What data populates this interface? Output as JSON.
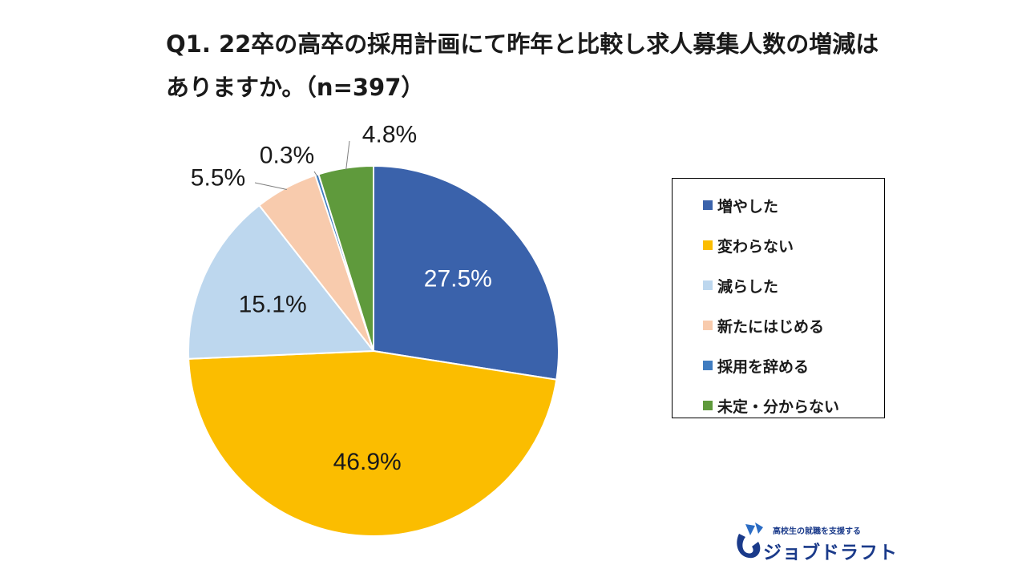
{
  "title": {
    "line1": "Q1. 22卒の高卒の採用計画にて昨年と比較し求人募集人数の増減は",
    "line2": "ありますか。（n=397）"
  },
  "chart_data": {
    "type": "pie",
    "title": "Q1. 22卒の高卒の採用計画にて昨年と比較し求人募集人数の増減はありますか。（n=397）",
    "start_angle": "12 o'clock",
    "direction": "clockwise",
    "legend_position": "right",
    "slices": [
      {
        "label": "増やした",
        "value": 27.5,
        "display": "27.5%",
        "color": "#3a62ab",
        "label_color": "#ffffff"
      },
      {
        "label": "変わらない",
        "value": 46.9,
        "display": "46.9%",
        "color": "#fbbd00",
        "label_color": "#1a1a1a"
      },
      {
        "label": "減らした",
        "value": 15.1,
        "display": "15.1%",
        "color": "#bdd7ee",
        "label_color": "#1a1a1a"
      },
      {
        "label": "新たにはじめる",
        "value": 5.5,
        "display": "5.5%",
        "color": "#f8cbad",
        "label_color": "#1a1a1a"
      },
      {
        "label": "採用を辞める",
        "value": 0.3,
        "display": "0.3%",
        "color": "#3f7cc0",
        "label_color": "#1a1a1a"
      },
      {
        "label": "未定・分からない",
        "value": 4.8,
        "display": "4.8%",
        "color": "#5f9a3c",
        "label_color": "#1a1a1a"
      }
    ]
  },
  "logo": {
    "tagline": "高校生の就職を支援する",
    "name": "ジョブドラフト"
  }
}
